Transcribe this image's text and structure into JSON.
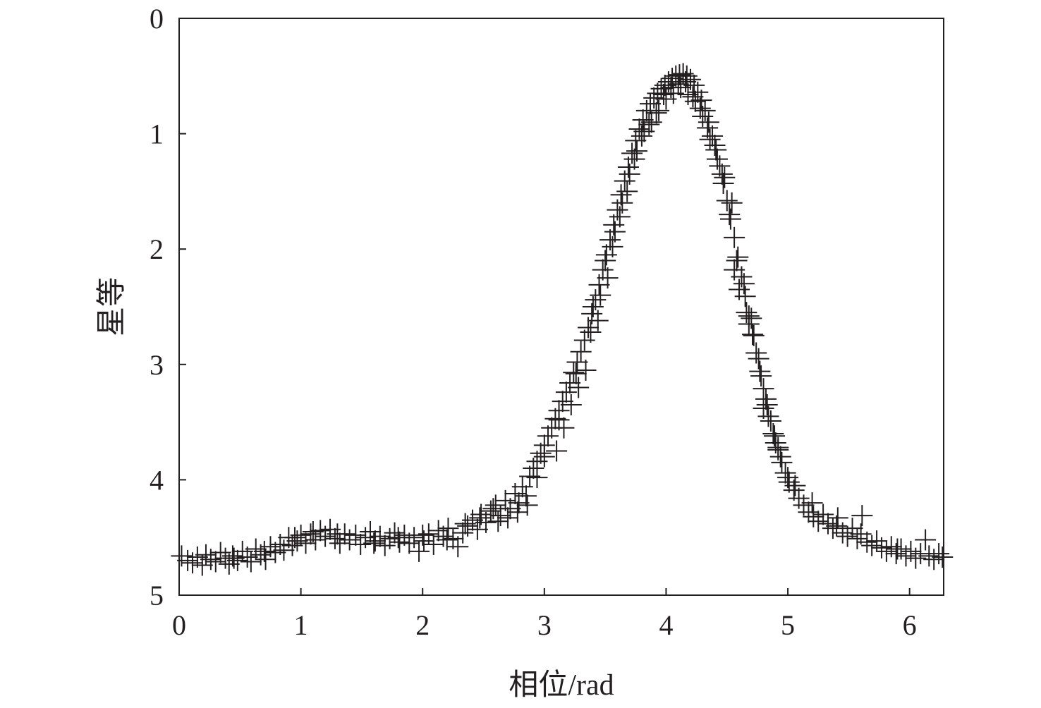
{
  "chart_data": {
    "type": "scatter",
    "marker": "plus",
    "color": "#231f20",
    "xlabel": "相位/rad",
    "ylabel": "星等",
    "xlim": [
      0,
      6.28
    ],
    "ylim": [
      0,
      5
    ],
    "y_inverted": true,
    "xticks": [
      0,
      1,
      2,
      3,
      4,
      5,
      6
    ],
    "yticks": [
      0,
      1,
      2,
      3,
      4,
      5
    ],
    "grid": false,
    "legend": "none",
    "points": [
      [
        0.02,
        4.66
      ],
      [
        0.07,
        4.7
      ],
      [
        0.11,
        4.72
      ],
      [
        0.15,
        4.67
      ],
      [
        0.19,
        4.74
      ],
      [
        0.22,
        4.65
      ],
      [
        0.26,
        4.69
      ],
      [
        0.3,
        4.71
      ],
      [
        0.34,
        4.63
      ],
      [
        0.38,
        4.68
      ],
      [
        0.41,
        4.73
      ],
      [
        0.44,
        4.66
      ],
      [
        0.48,
        4.7
      ],
      [
        0.52,
        4.62
      ],
      [
        0.56,
        4.67
      ],
      [
        0.59,
        4.71
      ],
      [
        0.63,
        4.6
      ],
      [
        0.67,
        4.65
      ],
      [
        0.71,
        4.69
      ],
      [
        0.75,
        4.58
      ],
      [
        0.79,
        4.63
      ],
      [
        0.83,
        4.56
      ],
      [
        0.86,
        4.61
      ],
      [
        0.9,
        4.5
      ],
      [
        0.93,
        4.57
      ],
      [
        0.97,
        4.53
      ],
      [
        1.0,
        4.48
      ],
      [
        1.04,
        4.55
      ],
      [
        1.08,
        4.47
      ],
      [
        1.12,
        4.52
      ],
      [
        1.16,
        4.44
      ],
      [
        1.2,
        4.49
      ],
      [
        1.24,
        4.43
      ],
      [
        1.28,
        4.51
      ],
      [
        1.32,
        4.55
      ],
      [
        1.36,
        4.47
      ],
      [
        1.4,
        4.52
      ],
      [
        1.45,
        4.48
      ],
      [
        1.49,
        4.56
      ],
      [
        1.53,
        4.5
      ],
      [
        1.57,
        4.45
      ],
      [
        1.61,
        4.53
      ],
      [
        1.65,
        4.49
      ],
      [
        1.69,
        4.57
      ],
      [
        1.73,
        4.51
      ],
      [
        1.77,
        4.46
      ],
      [
        1.81,
        4.54
      ],
      [
        1.85,
        4.48
      ],
      [
        1.89,
        4.55
      ],
      [
        1.93,
        4.5
      ],
      [
        1.97,
        4.62
      ],
      [
        2.01,
        4.53
      ],
      [
        2.05,
        4.47
      ],
      [
        2.09,
        4.56
      ],
      [
        2.13,
        4.44
      ],
      [
        2.17,
        4.49
      ],
      [
        2.21,
        4.42
      ],
      [
        2.25,
        4.51
      ],
      [
        2.29,
        4.58
      ],
      [
        2.33,
        4.46
      ],
      [
        2.37,
        4.4
      ],
      [
        2.41,
        4.35
      ],
      [
        2.45,
        4.43
      ],
      [
        2.48,
        4.3
      ],
      [
        2.52,
        4.37
      ],
      [
        2.56,
        4.27
      ],
      [
        2.6,
        4.22
      ],
      [
        2.64,
        4.31
      ],
      [
        2.68,
        4.18
      ],
      [
        2.72,
        4.25
      ],
      [
        2.76,
        4.12
      ],
      [
        2.79,
        4.2
      ],
      [
        2.82,
        4.06
      ],
      [
        2.85,
        4.14
      ],
      [
        2.88,
        3.97
      ],
      [
        2.91,
        3.9
      ],
      [
        2.94,
        3.84
      ],
      [
        2.97,
        3.77
      ],
      [
        3.0,
        3.7
      ],
      [
        3.03,
        3.62
      ],
      [
        3.06,
        3.55
      ],
      [
        3.09,
        3.47
      ],
      [
        3.12,
        3.4
      ],
      [
        3.15,
        3.32
      ],
      [
        3.18,
        3.24
      ],
      [
        3.21,
        3.16
      ],
      [
        3.24,
        3.07
      ],
      [
        3.27,
        2.98
      ],
      [
        3.3,
        2.89
      ],
      [
        3.33,
        2.79
      ],
      [
        3.36,
        2.68
      ],
      [
        3.39,
        2.56
      ],
      [
        3.42,
        2.44
      ],
      [
        3.45,
        2.31
      ],
      [
        3.48,
        2.18
      ],
      [
        3.51,
        2.05
      ],
      [
        3.54,
        1.92
      ],
      [
        3.57,
        1.79
      ],
      [
        3.6,
        1.66
      ],
      [
        3.63,
        1.53
      ],
      [
        3.66,
        1.41
      ],
      [
        3.69,
        1.29
      ],
      [
        3.72,
        1.17
      ],
      [
        3.75,
        1.06
      ],
      [
        3.78,
        0.96
      ],
      [
        3.81,
        0.88
      ],
      [
        3.84,
        0.8
      ],
      [
        3.87,
        0.74
      ],
      [
        3.9,
        0.69
      ],
      [
        3.93,
        0.65
      ],
      [
        3.96,
        0.61
      ],
      [
        3.99,
        0.58
      ],
      [
        4.02,
        0.55
      ],
      [
        4.05,
        0.52
      ],
      [
        4.08,
        0.5
      ],
      [
        4.11,
        0.49
      ],
      [
        4.14,
        0.48
      ],
      [
        4.17,
        0.5
      ],
      [
        4.2,
        0.53
      ],
      [
        4.23,
        0.58
      ],
      [
        4.26,
        0.64
      ],
      [
        4.29,
        0.71
      ],
      [
        4.32,
        0.8
      ],
      [
        4.35,
        0.9
      ],
      [
        4.38,
        1.02
      ],
      [
        4.41,
        1.14
      ],
      [
        4.44,
        1.28
      ],
      [
        4.47,
        1.43
      ],
      [
        4.5,
        1.58
      ],
      [
        4.53,
        1.74
      ],
      [
        4.56,
        1.9
      ],
      [
        4.59,
        2.07
      ],
      [
        4.62,
        2.24
      ],
      [
        4.65,
        2.41
      ],
      [
        4.68,
        2.58
      ],
      [
        4.71,
        2.74
      ],
      [
        4.74,
        2.9
      ],
      [
        4.77,
        3.06
      ],
      [
        4.8,
        3.21
      ],
      [
        4.83,
        3.35
      ],
      [
        4.86,
        3.49
      ],
      [
        4.89,
        3.62
      ],
      [
        4.92,
        3.74
      ],
      [
        4.95,
        3.85
      ],
      [
        4.98,
        3.94
      ],
      [
        5.01,
        4.02
      ],
      [
        5.05,
        4.09
      ],
      [
        5.09,
        4.16
      ],
      [
        5.13,
        4.22
      ],
      [
        5.17,
        4.28
      ],
      [
        5.21,
        4.32
      ],
      [
        5.25,
        4.36
      ],
      [
        5.29,
        4.3
      ],
      [
        5.33,
        4.38
      ],
      [
        5.37,
        4.42
      ],
      [
        5.41,
        4.33
      ],
      [
        5.45,
        4.46
      ],
      [
        5.49,
        4.49
      ],
      [
        5.53,
        4.42
      ],
      [
        5.57,
        4.51
      ],
      [
        5.61,
        4.31
      ],
      [
        5.65,
        4.54
      ],
      [
        5.69,
        4.57
      ],
      [
        5.73,
        4.53
      ],
      [
        5.77,
        4.59
      ],
      [
        5.81,
        4.62
      ],
      [
        5.85,
        4.58
      ],
      [
        5.89,
        4.64
      ],
      [
        5.93,
        4.6
      ],
      [
        5.97,
        4.66
      ],
      [
        6.01,
        4.62
      ],
      [
        6.05,
        4.68
      ],
      [
        6.09,
        4.64
      ],
      [
        6.13,
        4.52
      ],
      [
        6.16,
        4.66
      ],
      [
        6.2,
        4.69
      ],
      [
        6.24,
        4.64
      ],
      [
        6.27,
        4.67
      ],
      [
        3.4,
        2.5
      ],
      [
        3.46,
        2.4
      ],
      [
        3.52,
        2.25
      ],
      [
        3.58,
        1.85
      ],
      [
        3.64,
        1.6
      ],
      [
        3.7,
        1.35
      ],
      [
        3.76,
        1.15
      ],
      [
        3.82,
        0.98
      ],
      [
        3.88,
        0.9
      ],
      [
        3.94,
        0.8
      ],
      [
        4.0,
        0.7
      ],
      [
        4.06,
        0.65
      ],
      [
        4.12,
        0.6
      ],
      [
        4.18,
        0.66
      ],
      [
        4.24,
        0.72
      ],
      [
        4.3,
        0.85
      ],
      [
        4.36,
        1.05
      ],
      [
        4.42,
        1.22
      ],
      [
        4.48,
        1.38
      ],
      [
        4.54,
        1.6
      ],
      [
        4.6,
        2.35
      ],
      [
        4.66,
        2.55
      ],
      [
        4.72,
        2.75
      ],
      [
        4.78,
        3.1
      ],
      [
        4.84,
        3.45
      ],
      [
        4.9,
        3.68
      ],
      [
        3.1,
        3.75
      ],
      [
        3.0,
        3.8
      ],
      [
        2.94,
        3.98
      ],
      [
        2.86,
        4.22
      ],
      [
        2.78,
        4.28
      ],
      [
        2.7,
        4.33
      ],
      [
        2.62,
        4.36
      ],
      [
        3.16,
        3.55
      ],
      [
        3.22,
        3.35
      ],
      [
        3.28,
        3.2
      ],
      [
        3.34,
        3.05
      ],
      [
        3.44,
        2.62
      ],
      [
        3.5,
        2.1
      ],
      [
        3.56,
        1.98
      ],
      [
        3.62,
        1.72
      ],
      [
        3.68,
        1.5
      ],
      [
        3.74,
        1.22
      ],
      [
        3.8,
        1.02
      ],
      [
        3.86,
        0.92
      ],
      [
        3.92,
        0.82
      ],
      [
        3.98,
        0.66
      ],
      [
        4.04,
        0.6
      ],
      [
        4.1,
        0.57
      ],
      [
        4.16,
        0.55
      ],
      [
        4.22,
        0.68
      ],
      [
        4.28,
        0.78
      ],
      [
        4.34,
        0.95
      ],
      [
        4.4,
        1.1
      ],
      [
        4.46,
        1.35
      ],
      [
        4.52,
        1.7
      ],
      [
        4.58,
        2.1
      ],
      [
        4.64,
        2.3
      ],
      [
        4.7,
        2.6
      ],
      [
        4.76,
        2.95
      ],
      [
        4.82,
        3.3
      ],
      [
        4.88,
        3.6
      ],
      [
        4.94,
        3.8
      ],
      [
        5.0,
        3.98
      ],
      [
        1.1,
        4.45
      ],
      [
        1.3,
        4.47
      ],
      [
        1.6,
        4.55
      ],
      [
        1.8,
        4.5
      ],
      [
        2.0,
        4.48
      ],
      [
        2.2,
        4.52
      ],
      [
        0.45,
        4.68
      ],
      [
        0.7,
        4.62
      ],
      [
        0.95,
        4.5
      ],
      [
        2.35,
        4.38
      ],
      [
        2.47,
        4.33
      ],
      [
        2.58,
        4.25
      ],
      [
        3.12,
        3.48
      ],
      [
        3.26,
        3.08
      ],
      [
        3.38,
        2.72
      ],
      [
        4.56,
        2.18
      ],
      [
        4.68,
        2.65
      ],
      [
        4.8,
        3.38
      ],
      [
        4.92,
        3.72
      ],
      [
        5.06,
        4.05
      ],
      [
        5.2,
        4.2
      ],
      [
        5.4,
        4.4
      ],
      [
        5.6,
        4.47
      ],
      [
        5.9,
        4.6
      ]
    ]
  }
}
